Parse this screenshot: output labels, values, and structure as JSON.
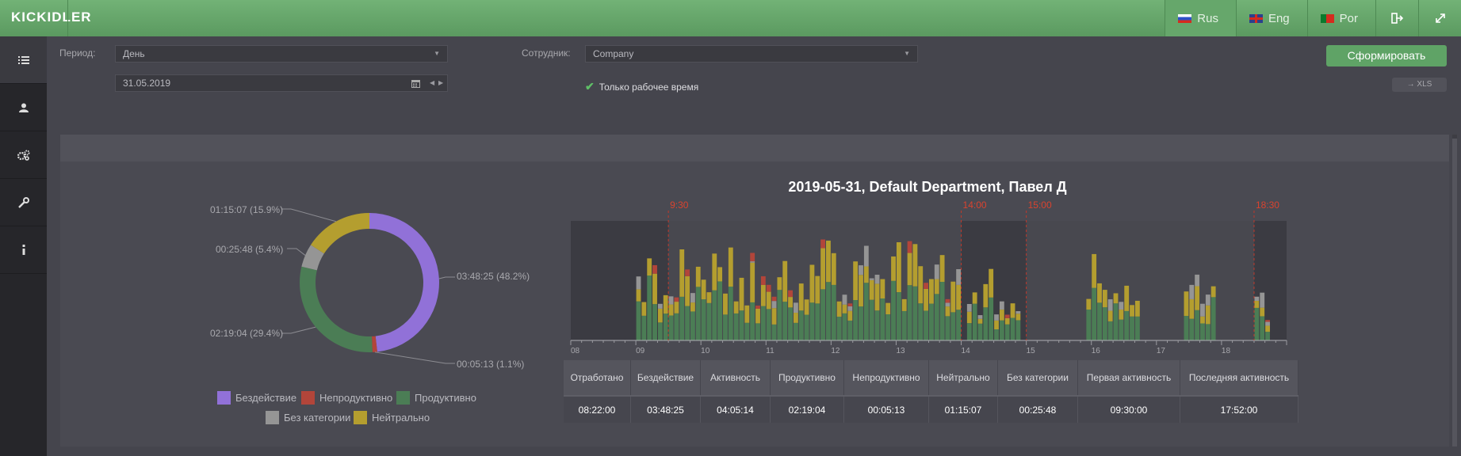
{
  "header": {
    "logo": "KICKIDLER",
    "languages": [
      {
        "label": "Rus",
        "active": true
      },
      {
        "label": "Eng",
        "active": false
      },
      {
        "label": "Por",
        "active": false
      }
    ],
    "logout_icon": "sign-out-icon",
    "fullscreen_icon": "expand-icon"
  },
  "sidebar": {
    "items": [
      {
        "icon": "list-icon",
        "active": true
      },
      {
        "icon": "user-icon",
        "active": false
      },
      {
        "icon": "gears-icon",
        "active": false
      },
      {
        "icon": "wrench-icon",
        "active": false
      },
      {
        "icon": "info-icon",
        "active": false
      }
    ]
  },
  "filters": {
    "period_label": "Период:",
    "period_value": "День",
    "date_value": "31.05.2019",
    "employee_label": "Сотрудник:",
    "employee_value": "Company",
    "work_time_only": "Только рабочее время",
    "work_time_checked": true,
    "submit_label": "Сформировать",
    "xls_label": "→ XLS"
  },
  "pie": {
    "slices": [
      {
        "name": "Бездействие",
        "time": "03:48:25",
        "percent": 48.2,
        "label": "03:48:25 (48.2%)",
        "color": "#9171d8"
      },
      {
        "name": "Непродуктивно",
        "time": "00:05:13",
        "percent": 1.1,
        "label": "00:05:13 (1.1%)",
        "color": "#b2453a"
      },
      {
        "name": "Продуктивно",
        "time": "02:19:04",
        "percent": 29.4,
        "label": "02:19:04 (29.4%)",
        "color": "#4b7d55"
      },
      {
        "name": "Без категории",
        "time": "00:25:48",
        "percent": 5.4,
        "label": "00:25:48 (5.4%)",
        "color": "#959595"
      },
      {
        "name": "Нейтрально",
        "time": "01:15:07",
        "percent": 15.9,
        "label": "01:15:07 (15.9%)",
        "color": "#b49e2f"
      }
    ]
  },
  "chart_data": {
    "type": "bar",
    "title": "2019-05-31, Default Department, Павел Д",
    "x_ticks": [
      "08",
      "09",
      "10",
      "11",
      "12",
      "13",
      "14",
      "15",
      "16",
      "17",
      "18"
    ],
    "xlim": [
      "08:00",
      "19:00"
    ],
    "markers": [
      "9:30",
      "14:00",
      "15:00",
      "18:30"
    ],
    "offhours_shaded": [
      [
        "08:00",
        "09:30"
      ],
      [
        "14:00",
        "15:00"
      ],
      [
        "18:30",
        "19:00"
      ]
    ],
    "series": [
      {
        "name": "Продуктивно",
        "color": "#4b7d55"
      },
      {
        "name": "Нейтрально",
        "color": "#b49e2f"
      },
      {
        "name": "Без категории",
        "color": "#959595"
      },
      {
        "name": "Непродуктивно",
        "color": "#b2453a"
      }
    ],
    "stack_scale_max": 100,
    "activity_blocks": [
      {
        "from": "09:00",
        "to": "11:50",
        "level": 80
      },
      {
        "from": "11:50",
        "to": "13:59",
        "level": 85
      },
      {
        "from": "14:05",
        "to": "14:55",
        "level": 60
      },
      {
        "from": "15:55",
        "to": "16:45",
        "level": 82
      },
      {
        "from": "17:25",
        "to": "17:55",
        "level": 75
      },
      {
        "from": "18:30",
        "to": "18:45",
        "level": 40
      }
    ]
  },
  "stats": {
    "headers": [
      "Отработано",
      "Бездействие",
      "Активность",
      "Продуктивно",
      "Непродуктивно",
      "Нейтрально",
      "Без категории",
      "Первая активность",
      "Последняя активность"
    ],
    "values": [
      "08:22:00",
      "03:48:25",
      "04:05:14",
      "02:19:04",
      "00:05:13",
      "01:15:07",
      "00:25:48",
      "09:30:00",
      "17:52:00"
    ]
  }
}
